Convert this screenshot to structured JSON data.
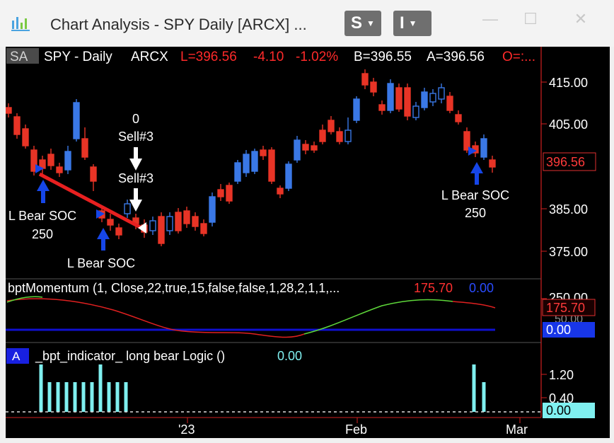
{
  "window": {
    "title": "Chart Analysis - SPY Daily [ARCX] ...",
    "s_button": "S",
    "i_button": "I",
    "minimize": "—",
    "maximize": "☐",
    "close": "✕"
  },
  "header": {
    "badge": "SA",
    "symbol": "SPY - Daily",
    "exchange": "ARCX",
    "last": "L=396.56",
    "change": "-4.10",
    "change_pct": "-1.02%",
    "bid": "B=396.55",
    "ask": "A=396.56",
    "open": "O=:..."
  },
  "price_axis": {
    "ticks": [
      "415.00",
      "405.00",
      "385.00",
      "375.00"
    ],
    "current": "396.56"
  },
  "annotations": {
    "zero": "0",
    "sell1": "Sell#3",
    "sell2": "Sell#3",
    "bear_left_1": "L Bear SOC",
    "bear_left_2": "250",
    "bear_mid": "L Bear SOC",
    "bear_right_1": "L Bear SOC",
    "bear_right_2": "250"
  },
  "momentum": {
    "label": "bptMomentum (1, Close,22,true,15,false,false,1,28,2,1,1,...",
    "value1": "175.70",
    "value2": "0.00",
    "axis_top": "250.00",
    "axis_hidden": "50.00",
    "tag_red": "175.70",
    "tag_blue": "0.00"
  },
  "indicator": {
    "badge": "A",
    "label": "_bpt_indicator_ long bear Logic ()",
    "value": "0.00",
    "ticks": [
      "1.20",
      "0.40"
    ],
    "tag": "0.00"
  },
  "time_axis": {
    "labels": [
      "'23",
      "Feb",
      "Mar"
    ]
  },
  "colors": {
    "up_candle": "#3a78e6",
    "down_candle": "#e83426",
    "trendline": "#e82020",
    "momentum_red": "#e82020",
    "momentum_green": "#5ed83a",
    "zero_line": "#1010d0",
    "histogram": "#7ff0f0",
    "arrow_blue": "#1646e8"
  }
}
